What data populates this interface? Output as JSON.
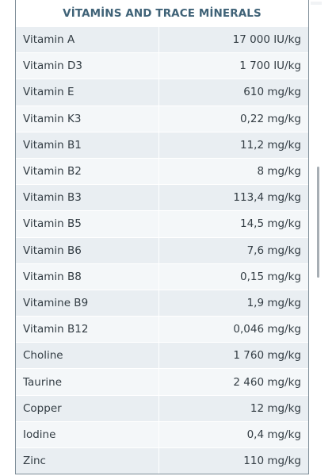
{
  "table": {
    "title": "VİTAMİNS AND TRACE MİNERALS",
    "rows": [
      {
        "name": "Vitamin A",
        "value": "17 000 IU/kg"
      },
      {
        "name": "Vitamin D3",
        "value": "1 700 IU/kg"
      },
      {
        "name": "Vitamin E",
        "value": "610 mg/kg"
      },
      {
        "name": "Vitamin K3",
        "value": "0,22 mg/kg"
      },
      {
        "name": "Vitamin B1",
        "value": "11,2 mg/kg"
      },
      {
        "name": "Vitamin B2",
        "value": "8 mg/kg"
      },
      {
        "name": "Vitamin B3",
        "value": "113,4 mg/kg"
      },
      {
        "name": "Vitamin B5",
        "value": "14,5 mg/kg"
      },
      {
        "name": "Vitamin B6",
        "value": "7,6 mg/kg"
      },
      {
        "name": "Vitamin B8",
        "value": "0,15 mg/kg"
      },
      {
        "name": "Vitamine B9",
        "value": "1,9 mg/kg"
      },
      {
        "name": "Vitamin B12",
        "value": "0,046 mg/kg"
      },
      {
        "name": "Choline",
        "value": "1 760 mg/kg"
      },
      {
        "name": "Taurine",
        "value": "2 460 mg/kg"
      },
      {
        "name": "Copper",
        "value": "12 mg/kg"
      },
      {
        "name": "Iodine",
        "value": "0,4 mg/kg"
      },
      {
        "name": "Zinc",
        "value": "110 mg/kg"
      }
    ]
  },
  "colors": {
    "title": "#3f6277",
    "row_odd": "#e9eef2",
    "row_even": "#f4f7f9",
    "border": "#7d8c97",
    "text": "#333d44"
  }
}
